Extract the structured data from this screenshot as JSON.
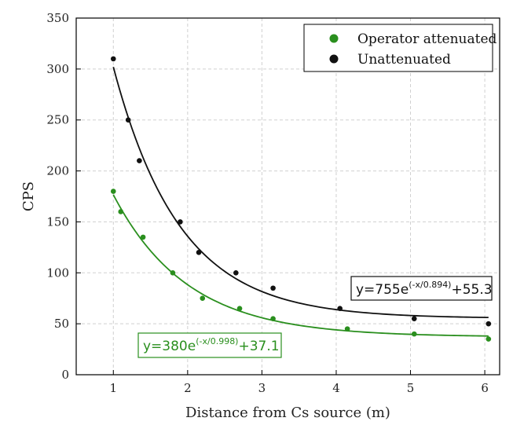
{
  "chart_data": {
    "type": "scatter",
    "title": "",
    "xlabel": "Distance from Cs source (m)",
    "ylabel": "CPS",
    "xlim": [
      0.5,
      6.2
    ],
    "ylim": [
      0,
      350
    ],
    "x_ticks": [
      1,
      2,
      3,
      4,
      5,
      6
    ],
    "y_ticks": [
      0,
      50,
      100,
      150,
      200,
      250,
      300,
      350
    ],
    "grid": true,
    "legend_position": "top-right",
    "series": [
      {
        "name": "Operator attenuated",
        "color": "#2a8f1e",
        "x": [
          1.0,
          1.1,
          1.4,
          1.8,
          2.2,
          2.7,
          3.15,
          4.15,
          5.05,
          6.05
        ],
        "y": [
          180,
          160,
          135,
          100,
          75,
          65,
          55,
          45,
          40,
          35
        ],
        "fit": {
          "A": 380,
          "t": 0.998,
          "c": 37.1
        },
        "equation": {
          "base": "y=380e",
          "exponent": "(-x/0.998)",
          "tail": "+37.1"
        }
      },
      {
        "name": "Unattenuated",
        "color": "#111111",
        "x": [
          1.0,
          1.2,
          1.35,
          1.9,
          2.15,
          2.65,
          3.15,
          4.05,
          5.05,
          6.05
        ],
        "y": [
          310,
          250,
          210,
          150,
          120,
          100,
          85,
          65,
          55,
          50
        ],
        "fit": {
          "A": 755,
          "t": 0.894,
          "c": 55.3
        },
        "equation": {
          "base": "y=755e",
          "exponent": "(-x/0.894)",
          "tail": "+55.3"
        }
      }
    ]
  }
}
